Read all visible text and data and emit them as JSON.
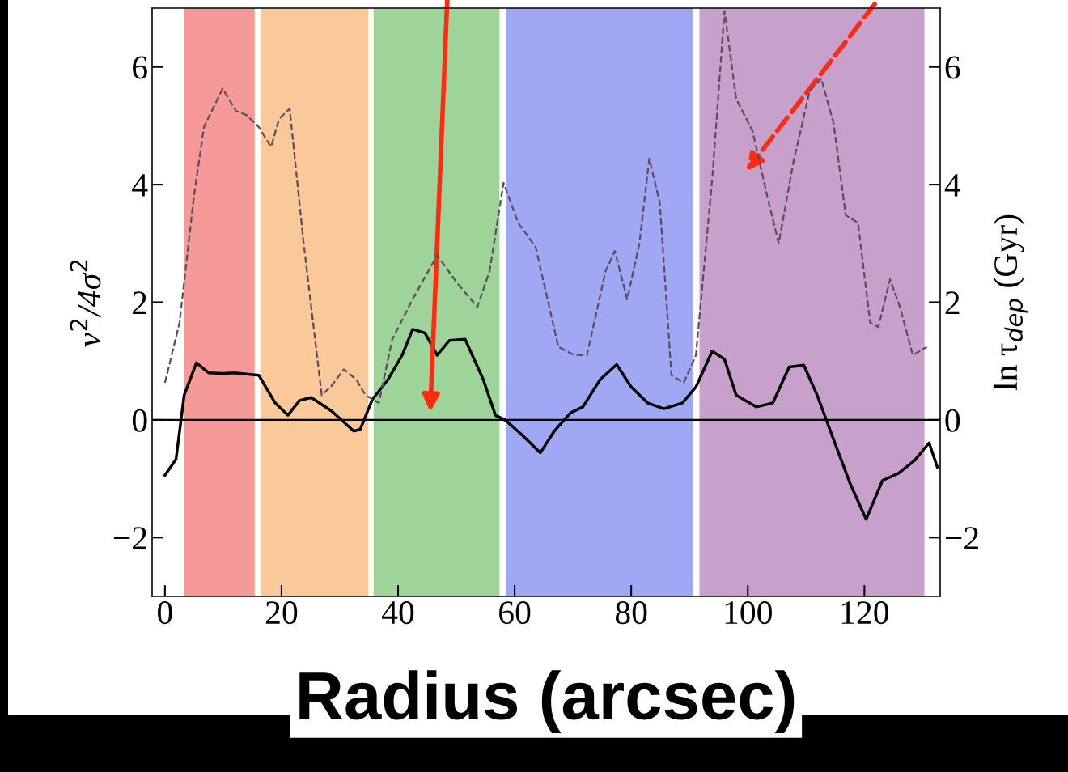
{
  "chart_data": {
    "type": "line",
    "xlabel": "Radius (arcsec)",
    "ylabel": "v$^{2}$/4σ$^{2}$",
    "y2label": "ln τ$_{dep}$ (Gyr)",
    "xlim": [
      -2.2,
      133
    ],
    "xticks": [
      0,
      20,
      40,
      60,
      80,
      100,
      120
    ],
    "ylim": [
      -3,
      7
    ],
    "yticks": [
      {
        "value": -2,
        "label": "−2"
      },
      0,
      2,
      4,
      6
    ],
    "y2lim": [
      -3,
      7
    ],
    "y2ticks": [
      {
        "value": -2,
        "label": "−2"
      },
      0,
      2,
      4,
      6
    ],
    "bands": [
      {
        "axis": "x",
        "from": 3.3,
        "to": 15.4,
        "color": "#f59a98"
      },
      {
        "axis": "x",
        "from": 16.4,
        "to": 34.9,
        "color": "#fbc89a"
      },
      {
        "axis": "x",
        "from": 35.8,
        "to": 57.4,
        "color": "#9ed49a"
      },
      {
        "axis": "x",
        "from": 58.5,
        "to": 90.6,
        "color": "#a0a8f5"
      },
      {
        "axis": "x",
        "from": 91.7,
        "to": 130.3,
        "color": "#c8a0cc"
      }
    ],
    "ref_lines": [
      {
        "axis": "y",
        "value": 0,
        "color": "#000000",
        "line_style": "solid"
      }
    ],
    "series": [
      {
        "color": "#000000",
        "line_style": "solid",
        "x": [
          0,
          1.9,
          3.3,
          5.4,
          7.5,
          9.9,
          11.9,
          16.1,
          18.9,
          21.1,
          23.1,
          25.1,
          28.6,
          32.4,
          33.5,
          35.6,
          38.3,
          40.7,
          42.5,
          44.6,
          46.7,
          48.8,
          51.5,
          54.6,
          56.7,
          58.5,
          61.3,
          64.4,
          66.8,
          69.6,
          71.7,
          74.7,
          77.5,
          80,
          82.8,
          85.6,
          88.8,
          91.1,
          93.9,
          96,
          98,
          101.5,
          104.3,
          107.1,
          109.6,
          111.9,
          114.7,
          117.5,
          120.3,
          123.1,
          125.8,
          128.6,
          131.1,
          132.5
        ],
        "values": [
          -0.94,
          -0.67,
          0.42,
          0.97,
          0.8,
          0.79,
          0.8,
          0.76,
          0.29,
          0.08,
          0.33,
          0.38,
          0.15,
          -0.19,
          -0.16,
          0.35,
          0.69,
          1.1,
          1.54,
          1.48,
          1.1,
          1.35,
          1.37,
          0.69,
          0.08,
          -0.01,
          -0.26,
          -0.56,
          -0.19,
          0.12,
          0.22,
          0.69,
          0.94,
          0.56,
          0.29,
          0.19,
          0.29,
          0.56,
          1.17,
          1.03,
          0.42,
          0.22,
          0.29,
          0.9,
          0.93,
          0.42,
          -0.33,
          -1.07,
          -1.69,
          -1.03,
          -0.91,
          -0.69,
          -0.39,
          -0.8
        ]
      },
      {
        "color": "#5c4b5c",
        "line_style": "dashed",
        "axis": "y2",
        "x": [
          0,
          2.5,
          5,
          6.7,
          9.9,
          12.2,
          14,
          16.1,
          18.2,
          19.6,
          21.4,
          23.8,
          26.9,
          28.6,
          30.7,
          32.8,
          34.4,
          36.7,
          39,
          42.5,
          46.7,
          50.1,
          53.6,
          55.7,
          58.1,
          60.6,
          63.6,
          67.5,
          70.3,
          72.4,
          75.6,
          77.2,
          79.3,
          81.4,
          83.1,
          84.9,
          86.9,
          89,
          91.1,
          93.9,
          96,
          98,
          100.8,
          103.3,
          105.3,
          107.8,
          110.6,
          112.6,
          114.7,
          116.8,
          118.9,
          121,
          122.4,
          124.4,
          126.1,
          128.3,
          130.7
        ],
        "values": [
          0.63,
          1.65,
          3.82,
          4.98,
          5.63,
          5.25,
          5.18,
          4.98,
          4.64,
          5.12,
          5.29,
          3.0,
          0.42,
          0.58,
          0.86,
          0.69,
          0.42,
          0.29,
          1.37,
          2.05,
          2.8,
          2.33,
          1.92,
          2.53,
          4.03,
          3.35,
          2.94,
          1.24,
          1.1,
          1.1,
          2.53,
          2.87,
          2.05,
          3.0,
          4.44,
          3.69,
          0.76,
          0.63,
          1.1,
          4.1,
          6.95,
          5.46,
          4.91,
          3.82,
          3.0,
          4.37,
          5.59,
          5.8,
          5.05,
          3.48,
          3.35,
          1.65,
          1.58,
          2.39,
          1.92,
          1.1,
          1.24
        ]
      }
    ]
  }
}
